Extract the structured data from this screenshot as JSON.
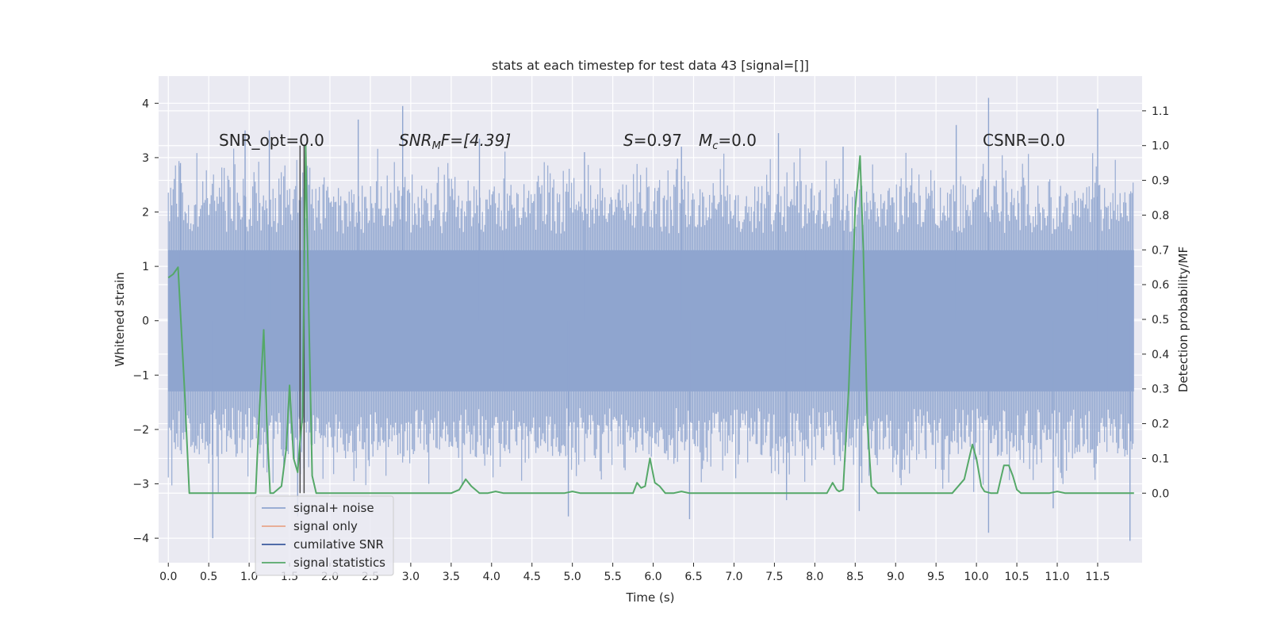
{
  "chart_data": {
    "type": "line",
    "title": "stats at each timestep for test data 43 [signal=[]]",
    "xlabel": "Time (s)",
    "ylabel_left": "Whitened strain",
    "ylabel_right": "Detection probability/MF",
    "xlim": [
      -0.12,
      12.05
    ],
    "ylim_left": [
      -4.45,
      4.5
    ],
    "ylim_right": [
      -0.2,
      1.2
    ],
    "x_ticks": [
      0.0,
      0.5,
      1.0,
      1.5,
      2.0,
      2.5,
      3.0,
      3.5,
      4.0,
      4.5,
      5.0,
      5.5,
      6.0,
      6.5,
      7.0,
      7.5,
      8.0,
      8.5,
      9.0,
      9.5,
      10.0,
      10.5,
      11.0,
      11.5
    ],
    "x_tick_labels": [
      "0.0",
      "0.5",
      "1.0",
      "1.5",
      "2.0",
      "2.5",
      "3.0",
      "3.5",
      "4.0",
      "4.5",
      "5.0",
      "5.5",
      "6.0",
      "6.5",
      "7.0",
      "7.5",
      "8.0",
      "8.5",
      "9.0",
      "9.5",
      "10.0",
      "10.5",
      "11.0",
      "11.5"
    ],
    "y_left_ticks": [
      -4,
      -3,
      -2,
      -1,
      0,
      1,
      2,
      3,
      4
    ],
    "y_left_tick_labels": [
      "−4",
      "−3",
      "−2",
      "−1",
      "0",
      "1",
      "2",
      "3",
      "4"
    ],
    "y_right_ticks": [
      0.0,
      0.1,
      0.2,
      0.3,
      0.4,
      0.5,
      0.6,
      0.7,
      0.8,
      0.9,
      1.0,
      1.1
    ],
    "y_right_tick_labels": [
      "0.0",
      "0.1",
      "0.2",
      "0.3",
      "0.4",
      "0.5",
      "0.6",
      "0.7",
      "0.8",
      "0.9",
      "1.0",
      "1.1"
    ],
    "grid": true,
    "legend": {
      "placement": "lower-left",
      "entries": [
        {
          "label": "signal+ noise",
          "color": "#8fa5cf"
        },
        {
          "label": "signal only",
          "color": "#e8a58a"
        },
        {
          "label": "cumilative SNR",
          "color": "#3b5a9d"
        },
        {
          "label": "signal statistics",
          "color": "#55a868"
        }
      ]
    },
    "annotations": {
      "snr_opt": "SNR_opt=0.0",
      "snr_mf_main": "SNR",
      "snr_mf_sub": "M",
      "snr_mf_rest": "F=[4.39]",
      "s_var": "S",
      "s_val": "=0.97",
      "mc_var": "M",
      "mc_sub": "c",
      "mc_val": "=0.0",
      "csnr": "CSNR=0.0"
    },
    "series": [
      {
        "name": "signal+ noise",
        "axis": "left",
        "color": "#8fa5cf",
        "t_range": [
          0.0,
          11.95
        ],
        "typical_range": [
          -2.5,
          2.5
        ],
        "peaks_high": [
          [
            0.15,
            2.9
          ],
          [
            0.95,
            3.5
          ],
          [
            1.25,
            3.5
          ],
          [
            2.35,
            3.7
          ],
          [
            2.9,
            3.95
          ],
          [
            3.85,
            3.35
          ],
          [
            5.15,
            3.1
          ],
          [
            6.35,
            3.2
          ],
          [
            7.55,
            3.45
          ],
          [
            8.35,
            3.2
          ],
          [
            9.75,
            3.6
          ],
          [
            10.15,
            4.1
          ],
          [
            11.5,
            3.9
          ]
        ],
        "peaks_low": [
          [
            0.55,
            -4.0
          ],
          [
            1.6,
            -3.6
          ],
          [
            4.95,
            -3.6
          ],
          [
            6.45,
            -3.65
          ],
          [
            7.65,
            -3.3
          ],
          [
            8.55,
            -3.5
          ],
          [
            10.15,
            -3.9
          ],
          [
            10.95,
            -3.45
          ],
          [
            11.9,
            -4.05
          ]
        ]
      },
      {
        "name": "signal statistics",
        "axis": "right",
        "color": "#55a868",
        "x": [
          0.0,
          0.06,
          0.12,
          0.2,
          0.26,
          0.35,
          0.45,
          0.6,
          0.8,
          1.0,
          1.08,
          1.12,
          1.18,
          1.22,
          1.26,
          1.3,
          1.4,
          1.46,
          1.5,
          1.55,
          1.6,
          1.63,
          1.66,
          1.7,
          1.74,
          1.78,
          1.83,
          1.9,
          2.0,
          2.5,
          3.0,
          3.5,
          3.6,
          3.68,
          3.75,
          3.85,
          3.95,
          4.05,
          4.15,
          4.3,
          4.5,
          4.9,
          5.0,
          5.1,
          5.5,
          5.75,
          5.8,
          5.85,
          5.9,
          5.96,
          6.02,
          6.08,
          6.15,
          6.25,
          6.35,
          6.45,
          6.55,
          6.75,
          6.85,
          7.0,
          8.0,
          8.15,
          8.22,
          8.27,
          8.3,
          8.35,
          8.42,
          8.5,
          8.56,
          8.6,
          8.65,
          8.7,
          8.78,
          8.85,
          9.0,
          9.5,
          9.7,
          9.85,
          9.95,
          10.0,
          10.06,
          10.1,
          10.18,
          10.26,
          10.3,
          10.34,
          10.4,
          10.45,
          10.5,
          10.55,
          10.7,
          10.9,
          11.0,
          11.1,
          11.5,
          11.95
        ],
        "y": [
          0.62,
          0.63,
          0.65,
          0.3,
          0.0,
          0.0,
          0.0,
          0.0,
          0.0,
          0.0,
          0.0,
          0.2,
          0.47,
          0.2,
          0.0,
          0.0,
          0.02,
          0.13,
          0.31,
          0.1,
          0.06,
          0.15,
          0.22,
          1.0,
          0.5,
          0.05,
          0.0,
          0.0,
          0.0,
          0.0,
          0.0,
          0.0,
          0.01,
          0.04,
          0.02,
          0.0,
          0.0,
          0.005,
          0.0,
          0.0,
          0.0,
          0.0,
          0.005,
          0.0,
          0.0,
          0.0,
          0.03,
          0.015,
          0.02,
          0.1,
          0.03,
          0.02,
          0.0,
          0.0,
          0.005,
          0.0,
          0.0,
          0.0,
          0.0,
          0.0,
          0.0,
          0.0,
          0.03,
          0.01,
          0.005,
          0.01,
          0.3,
          0.82,
          0.97,
          0.7,
          0.2,
          0.02,
          0.0,
          0.0,
          0.0,
          0.0,
          0.0,
          0.04,
          0.14,
          0.1,
          0.02,
          0.005,
          0.0,
          0.0,
          0.04,
          0.08,
          0.08,
          0.05,
          0.01,
          0.0,
          0.0,
          0.0,
          0.005,
          0.0,
          0.0,
          0.0
        ]
      },
      {
        "name": "cumilative SNR",
        "axis": "right",
        "color": "#3b5a9d",
        "x": [],
        "y": []
      },
      {
        "name": "signal only",
        "axis": "left",
        "color": "#e8a58a",
        "x": [],
        "y": []
      }
    ],
    "vlines": [
      {
        "x": 1.63,
        "color": "#444444"
      },
      {
        "x": 1.68,
        "color": "#444444"
      }
    ],
    "colors": {
      "plot_background": "#eaeaf2",
      "grid": "#ffffff",
      "text": "#262626"
    }
  }
}
